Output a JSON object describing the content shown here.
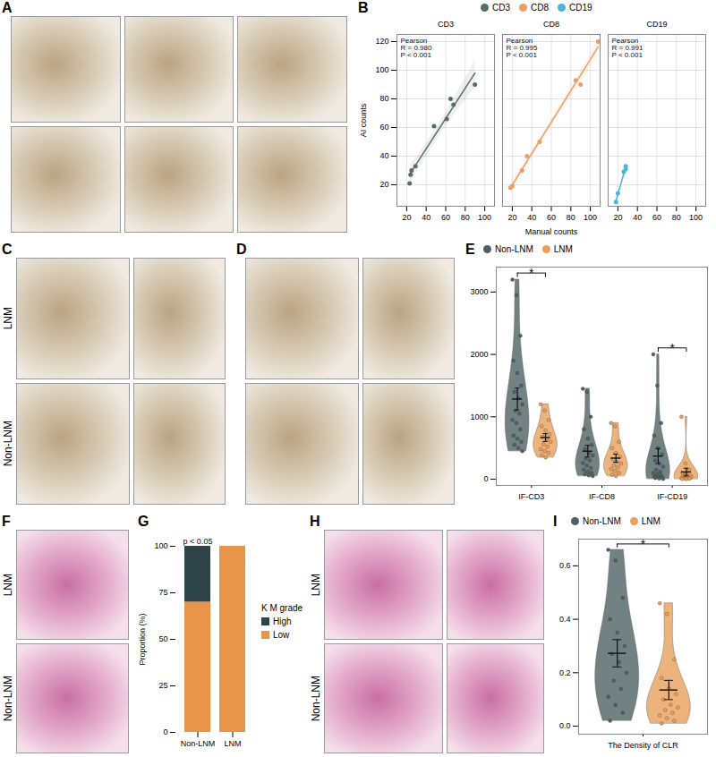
{
  "image_panels": [
    {
      "panel": "A",
      "row_labels": [
        null,
        null
      ],
      "columns": 3
    },
    {
      "panel": "C",
      "row_labels": [
        "LNM",
        "Non-LNM"
      ],
      "columns": 2
    },
    {
      "panel": "D",
      "row_labels": [
        null,
        null
      ],
      "columns": 2
    },
    {
      "panel": "F",
      "row_labels": [
        "LNM",
        "Non-LNM"
      ],
      "columns": 1
    },
    {
      "panel": "H",
      "row_labels": [
        "LNM",
        "Non-LNM"
      ],
      "columns": 2
    }
  ],
  "chart_data": [
    {
      "panel": "B",
      "type": "scatter",
      "xlabel": "Manual counts",
      "ylabel": "AI counts",
      "xlim": [
        10,
        110
      ],
      "xticks": [
        20,
        40,
        60,
        80,
        100
      ],
      "ylim": [
        5,
        125
      ],
      "yticks": [
        20,
        40,
        60,
        80,
        100,
        120
      ],
      "grid": true,
      "legend": "top",
      "series": [
        {
          "name": "CD3",
          "color": "#5b6b6c",
          "x": [
            23,
            24,
            25,
            29,
            48,
            61,
            65,
            68,
            90
          ],
          "values": [
            21,
            27,
            30,
            33,
            61,
            66,
            80,
            76,
            90
          ],
          "annotation": "Pearson\nR = 0.980\nP < 0.001"
        },
        {
          "name": "CD8",
          "color": "#e8a06a",
          "x": [
            18,
            20,
            30,
            35,
            48,
            85,
            90,
            108
          ],
          "values": [
            18,
            19,
            30,
            40,
            50,
            93,
            90,
            120
          ],
          "annotation": "Pearson\nR = 0.995\nP < 0.001"
        },
        {
          "name": "CD19",
          "color": "#4fb3d9",
          "x": [
            18,
            20,
            26,
            28,
            28
          ],
          "values": [
            8,
            14,
            29,
            33,
            31
          ],
          "annotation": "Pearson\nR = 0.991\nP < 0.001"
        }
      ]
    },
    {
      "panel": "E",
      "type": "violin",
      "categories": [
        "IF-CD3",
        "IF-CD8",
        "IF-CD19"
      ],
      "ylim": [
        -100,
        3400
      ],
      "yticks": [
        0,
        1000,
        2000,
        3000
      ],
      "legend": "top",
      "series": [
        {
          "name": "Non-LNM",
          "color": "#4f6163",
          "values": [
            [
              3200,
              2950,
              2300,
              1900,
              1700,
              1500,
              1400,
              1300,
              1200,
              1100,
              1050,
              950,
              900,
              800,
              700,
              650,
              600,
              550,
              500,
              450
            ],
            [
              1450,
              1400,
              1000,
              800,
              650,
              550,
              480,
              420,
              380,
              330,
              300,
              260,
              220,
              180,
              150,
              120,
              100,
              80,
              60,
              50
            ],
            [
              2000,
              1500,
              900,
              700,
              500,
              400,
              300,
              250,
              200,
              150,
              120,
              100,
              80,
              60,
              50,
              40,
              30,
              20,
              10,
              5
            ]
          ]
        },
        {
          "name": "LNM",
          "color": "#e8a05c",
          "values": [
            [
              1200,
              1100,
              950,
              850,
              780,
              720,
              680,
              640,
              600,
              560,
              520,
              480,
              450,
              420,
              380,
              350
            ],
            [
              900,
              850,
              600,
              500,
              420,
              360,
              320,
              280,
              250,
              220,
              190,
              160,
              130,
              100,
              70,
              50
            ],
            [
              1000,
              250,
              150,
              100,
              80,
              60,
              50,
              40,
              30,
              25,
              20,
              15,
              10,
              8,
              5,
              3
            ]
          ]
        }
      ],
      "annotations": [
        {
          "category": "IF-CD3",
          "text": "*"
        },
        {
          "category": "IF-CD19",
          "text": "*"
        }
      ]
    },
    {
      "panel": "G",
      "type": "bar",
      "stacked": true,
      "categories": [
        "Non-LNM",
        "LNM"
      ],
      "ylabel": "Proportion (%)",
      "ylim": [
        0,
        100
      ],
      "yticks": [
        0,
        25,
        50,
        75,
        100
      ],
      "legend": "right",
      "legend_title": "K M grade",
      "series": [
        {
          "name": "High",
          "color": "#2f4447",
          "values": [
            30,
            0
          ]
        },
        {
          "name": "Low",
          "color": "#e8954a",
          "values": [
            70,
            100
          ]
        }
      ],
      "annotations": [
        {
          "category": "Non-LNM",
          "text": "p < 0.05"
        }
      ]
    },
    {
      "panel": "I",
      "type": "violin",
      "categories": [
        "The Density of CLR"
      ],
      "ylim": [
        -0.03,
        0.7
      ],
      "yticks": [
        {
          "value": 0,
          "label": "0.0"
        },
        {
          "value": 0.2,
          "label": "0.2"
        },
        {
          "value": 0.4,
          "label": "0.4"
        },
        {
          "value": 0.6,
          "label": "0.6"
        }
      ],
      "legend": "top",
      "series": [
        {
          "name": "Non-LNM",
          "color": "#4f6163",
          "values": [
            [
              0.66,
              0.62,
              0.48,
              0.4,
              0.35,
              0.3,
              0.27,
              0.24,
              0.2,
              0.17,
              0.14,
              0.11,
              0.08,
              0.05,
              0.02
            ]
          ]
        },
        {
          "name": "LNM",
          "color": "#e8a05c",
          "values": [
            [
              0.46,
              0.42,
              0.25,
              0.18,
              0.14,
              0.12,
              0.1,
              0.08,
              0.07,
              0.06,
              0.05,
              0.04,
              0.03,
              0.02,
              0.01
            ]
          ]
        }
      ],
      "annotations": [
        {
          "category": "The Density of CLR",
          "text": "*"
        }
      ]
    }
  ]
}
